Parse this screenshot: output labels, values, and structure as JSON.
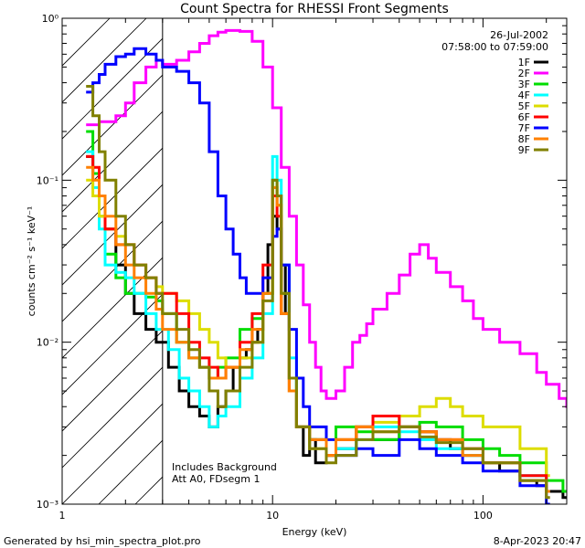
{
  "chart_data": {
    "type": "line",
    "title": "Count Spectra for RHESSI Front Segments",
    "xlabel": "Energy (keV)",
    "ylabel": "counts cm⁻² s⁻¹ keV⁻¹",
    "xscale": "log",
    "yscale": "log",
    "xlim": [
      1,
      250
    ],
    "ylim": [
      0.001,
      1.0
    ],
    "x_ticks": [
      {
        "value": 1,
        "label": "1"
      },
      {
        "value": 10,
        "label": "10"
      },
      {
        "value": 100,
        "label": "100"
      }
    ],
    "y_ticks": [
      {
        "value": 1,
        "label": "10⁰"
      },
      {
        "value": 0.1,
        "label": "10⁻¹"
      },
      {
        "value": 0.01,
        "label": "10⁻²"
      },
      {
        "value": 0.001,
        "label": "10⁻³"
      }
    ],
    "date": "26-Jul-2002",
    "time_range": "07:58:00 to 07:59:00",
    "annotations": [
      "Includes Background",
      "Att A0, FDsegm 1"
    ],
    "hatched_region_max_energy": 3.0,
    "series": [
      {
        "name": "1F",
        "color": "#000000",
        "x": [
          1.3,
          1.4,
          1.5,
          1.6,
          1.8,
          2.0,
          2.2,
          2.5,
          2.8,
          3.2,
          3.6,
          4.0,
          4.5,
          5.0,
          5.5,
          6.0,
          6.5,
          7.0,
          7.5,
          8.0,
          8.5,
          9.0,
          9.5,
          10.0,
          10.5,
          11.0,
          11.5,
          12.0,
          13,
          14,
          15,
          16,
          18,
          20,
          25,
          30,
          40,
          50,
          60,
          70,
          80,
          100,
          120,
          150,
          180,
          200,
          240
        ],
        "values": [
          0.14,
          0.11,
          0.08,
          0.05,
          0.03,
          0.02,
          0.015,
          0.012,
          0.01,
          0.007,
          0.005,
          0.004,
          0.0035,
          0.003,
          0.004,
          0.005,
          0.007,
          0.008,
          0.009,
          0.01,
          0.012,
          0.02,
          0.04,
          0.06,
          0.05,
          0.03,
          0.015,
          0.006,
          0.003,
          0.002,
          0.0025,
          0.0018,
          0.002,
          0.0022,
          0.003,
          0.0025,
          0.003,
          0.0028,
          0.0025,
          0.0022,
          0.002,
          0.0018,
          0.0016,
          0.0014,
          0.0013,
          0.0012,
          0.0011
        ]
      },
      {
        "name": "2F",
        "color": "#ff00ff",
        "x": [
          1.3,
          1.5,
          1.8,
          2.0,
          2.2,
          2.5,
          2.8,
          3.0,
          3.5,
          4.0,
          4.5,
          5.0,
          5.5,
          6.0,
          7.0,
          8.0,
          9.0,
          10.0,
          11.0,
          12.0,
          13.0,
          14.0,
          15,
          16,
          17,
          18,
          19,
          20,
          22,
          24,
          26,
          28,
          30,
          35,
          40,
          45,
          50,
          55,
          60,
          70,
          80,
          90,
          100,
          120,
          150,
          180,
          200,
          230,
          250
        ],
        "values": [
          0.22,
          0.23,
          0.25,
          0.3,
          0.4,
          0.5,
          0.55,
          0.52,
          0.55,
          0.62,
          0.7,
          0.78,
          0.82,
          0.84,
          0.83,
          0.72,
          0.5,
          0.28,
          0.12,
          0.06,
          0.03,
          0.017,
          0.01,
          0.007,
          0.005,
          0.0045,
          0.0045,
          0.005,
          0.007,
          0.01,
          0.011,
          0.013,
          0.016,
          0.02,
          0.026,
          0.035,
          0.04,
          0.033,
          0.027,
          0.022,
          0.018,
          0.014,
          0.012,
          0.01,
          0.0085,
          0.0065,
          0.0055,
          0.0045,
          0.004
        ]
      },
      {
        "name": "3F",
        "color": "#00dd00",
        "x": [
          1.3,
          1.4,
          1.5,
          1.6,
          1.8,
          2.0,
          2.2,
          2.5,
          2.8,
          3.0,
          3.5,
          4.0,
          4.5,
          5.0,
          5.5,
          6.0,
          7.0,
          8.0,
          9.0,
          10.0,
          10.5,
          11.0,
          12.0,
          13,
          15,
          18,
          20,
          25,
          30,
          40,
          50,
          60,
          80,
          100,
          120,
          150,
          200,
          240
        ],
        "values": [
          0.2,
          0.11,
          0.06,
          0.035,
          0.025,
          0.02,
          0.02,
          0.019,
          0.018,
          0.015,
          0.01,
          0.008,
          0.007,
          0.006,
          0.007,
          0.008,
          0.012,
          0.014,
          0.02,
          0.1,
          0.08,
          0.02,
          0.006,
          0.003,
          0.0025,
          0.002,
          0.003,
          0.0028,
          0.0025,
          0.003,
          0.0032,
          0.003,
          0.0025,
          0.0022,
          0.002,
          0.0018,
          0.0014,
          0.0012
        ]
      },
      {
        "name": "4F",
        "color": "#00ffff",
        "x": [
          1.3,
          1.4,
          1.5,
          1.6,
          1.8,
          2.0,
          2.2,
          2.5,
          2.8,
          3.2,
          3.6,
          4.0,
          4.5,
          5.0,
          5.5,
          6.0,
          7.0,
          8.0,
          9.0,
          10.0,
          10.5,
          11.0,
          12.0,
          13,
          15,
          18,
          20,
          25,
          30,
          40,
          50,
          60,
          80,
          100,
          150,
          200
        ],
        "values": [
          0.15,
          0.09,
          0.05,
          0.03,
          0.027,
          0.025,
          0.02,
          0.015,
          0.012,
          0.009,
          0.006,
          0.005,
          0.004,
          0.003,
          0.0035,
          0.004,
          0.006,
          0.008,
          0.015,
          0.14,
          0.1,
          0.03,
          0.008,
          0.003,
          0.0025,
          0.002,
          0.0022,
          0.0025,
          0.003,
          0.0028,
          0.0025,
          0.0022,
          0.002,
          0.0018,
          0.0015,
          0.0012
        ]
      },
      {
        "name": "5F",
        "color": "#dddd00",
        "x": [
          1.3,
          1.4,
          1.5,
          1.6,
          1.8,
          2.0,
          2.2,
          2.5,
          2.8,
          3.0,
          3.5,
          4.0,
          4.5,
          5.0,
          5.5,
          6.0,
          7.0,
          8.0,
          9.0,
          10.0,
          10.5,
          11.0,
          12.0,
          13,
          15,
          18,
          20,
          25,
          30,
          40,
          50,
          60,
          70,
          80,
          100,
          150,
          200
        ],
        "values": [
          0.1,
          0.08,
          0.06,
          0.05,
          0.045,
          0.04,
          0.03,
          0.025,
          0.022,
          0.02,
          0.018,
          0.015,
          0.012,
          0.01,
          0.008,
          0.007,
          0.008,
          0.01,
          0.02,
          0.09,
          0.07,
          0.015,
          0.005,
          0.003,
          0.0022,
          0.002,
          0.0025,
          0.003,
          0.0032,
          0.0035,
          0.004,
          0.0045,
          0.004,
          0.0035,
          0.003,
          0.0022,
          0.0015
        ]
      },
      {
        "name": "6F",
        "color": "#ff0000",
        "x": [
          1.3,
          1.4,
          1.5,
          1.6,
          1.8,
          2.0,
          2.2,
          2.5,
          2.8,
          3.0,
          3.5,
          4.0,
          4.5,
          5.0,
          5.5,
          6.0,
          7.0,
          8.0,
          9.0,
          10.0,
          10.5,
          11.0,
          12.0,
          13,
          15,
          18,
          20,
          25,
          30,
          40,
          50,
          60,
          80,
          100,
          150,
          200
        ],
        "values": [
          0.14,
          0.12,
          0.08,
          0.05,
          0.04,
          0.04,
          0.03,
          0.025,
          0.02,
          0.02,
          0.015,
          0.01,
          0.008,
          0.007,
          0.006,
          0.007,
          0.01,
          0.015,
          0.03,
          0.08,
          0.06,
          0.015,
          0.005,
          0.003,
          0.0025,
          0.002,
          0.0025,
          0.003,
          0.0035,
          0.003,
          0.0028,
          0.0025,
          0.0022,
          0.0018,
          0.0015,
          0.0012
        ]
      },
      {
        "name": "7F",
        "color": "#0000ff",
        "x": [
          1.3,
          1.4,
          1.5,
          1.6,
          1.8,
          2.0,
          2.2,
          2.5,
          2.8,
          3.0,
          3.5,
          4.0,
          4.5,
          5.0,
          5.5,
          6.0,
          6.5,
          7.0,
          7.5,
          8.0,
          9.0,
          10.0,
          10.5,
          11.0,
          12.0,
          13,
          14,
          15,
          18,
          20,
          25,
          30,
          40,
          50,
          60,
          80,
          100,
          150,
          200
        ],
        "values": [
          0.35,
          0.4,
          0.45,
          0.52,
          0.58,
          0.6,
          0.65,
          0.6,
          0.55,
          0.5,
          0.47,
          0.4,
          0.3,
          0.15,
          0.08,
          0.05,
          0.035,
          0.025,
          0.02,
          0.02,
          0.025,
          0.045,
          0.05,
          0.03,
          0.012,
          0.006,
          0.004,
          0.003,
          0.0025,
          0.002,
          0.0022,
          0.002,
          0.0025,
          0.0022,
          0.002,
          0.0018,
          0.0016,
          0.0013,
          0.001
        ]
      },
      {
        "name": "8F",
        "color": "#ff8000",
        "x": [
          1.3,
          1.4,
          1.5,
          1.6,
          1.8,
          2.0,
          2.2,
          2.5,
          2.8,
          3.0,
          3.5,
          4.0,
          4.5,
          5.0,
          5.5,
          6.0,
          7.0,
          8.0,
          9.0,
          10.0,
          10.5,
          11.0,
          12.0,
          13,
          15,
          18,
          20,
          25,
          30,
          40,
          50,
          60,
          80,
          100,
          150,
          200
        ],
        "values": [
          0.12,
          0.1,
          0.08,
          0.06,
          0.04,
          0.03,
          0.025,
          0.02,
          0.016,
          0.012,
          0.01,
          0.008,
          0.007,
          0.006,
          0.006,
          0.007,
          0.009,
          0.012,
          0.02,
          0.09,
          0.07,
          0.015,
          0.005,
          0.003,
          0.0025,
          0.002,
          0.0025,
          0.003,
          0.0028,
          0.003,
          0.0028,
          0.0025,
          0.002,
          0.0018,
          0.0014,
          0.0012
        ]
      },
      {
        "name": "9F",
        "color": "#808000",
        "x": [
          1.3,
          1.4,
          1.5,
          1.6,
          1.8,
          2.0,
          2.2,
          2.5,
          2.8,
          3.0,
          3.5,
          4.0,
          4.5,
          5.0,
          5.5,
          6.0,
          7.0,
          8.0,
          9.0,
          10.0,
          10.5,
          11.0,
          12.0,
          13,
          15,
          18,
          20,
          25,
          30,
          40,
          50,
          60,
          80,
          100,
          150,
          200
        ],
        "values": [
          0.38,
          0.25,
          0.15,
          0.1,
          0.06,
          0.04,
          0.03,
          0.025,
          0.02,
          0.015,
          0.012,
          0.009,
          0.007,
          0.005,
          0.004,
          0.005,
          0.007,
          0.01,
          0.018,
          0.1,
          0.08,
          0.02,
          0.006,
          0.003,
          0.0022,
          0.0018,
          0.002,
          0.0025,
          0.0028,
          0.003,
          0.0026,
          0.0024,
          0.0022,
          0.0018,
          0.0014,
          0.0011
        ]
      }
    ]
  },
  "footer": {
    "generated_by": "Generated by hsi_min_spectra_plot.pro",
    "timestamp": "8-Apr-2023 20:47"
  }
}
